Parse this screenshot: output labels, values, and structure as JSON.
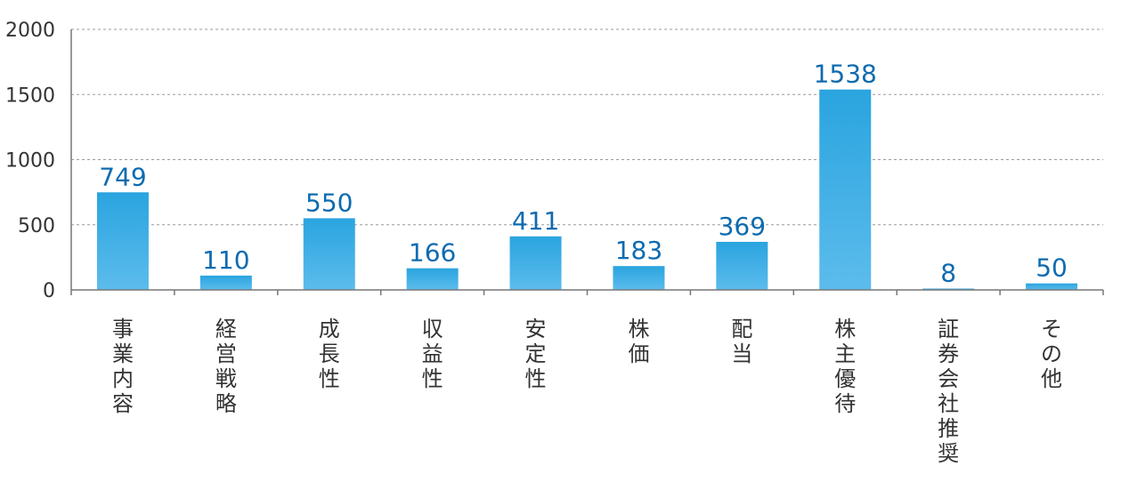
{
  "chart_data": {
    "type": "bar",
    "categories": [
      "事業内容",
      "経営戦略",
      "成長性",
      "収益性",
      "安定性",
      "株価",
      "配当",
      "株主優待",
      "証券会社推奨",
      "その他"
    ],
    "values": [
      749,
      110,
      550,
      166,
      411,
      183,
      369,
      1538,
      8,
      50
    ],
    "data_labels": [
      "749",
      "110",
      "550",
      "166",
      "411",
      "183",
      "369",
      "1538",
      "8",
      "50"
    ],
    "y_ticks": [
      "0",
      "500",
      "1000",
      "1500",
      "2000"
    ],
    "ylim": [
      0,
      2000
    ],
    "grid": true,
    "colors": {
      "bar_top": "#2aa4df",
      "bar_bottom": "#5cbcec",
      "value_label": "#0d6bb0",
      "grid": "#999999",
      "axis": "#777777"
    }
  }
}
